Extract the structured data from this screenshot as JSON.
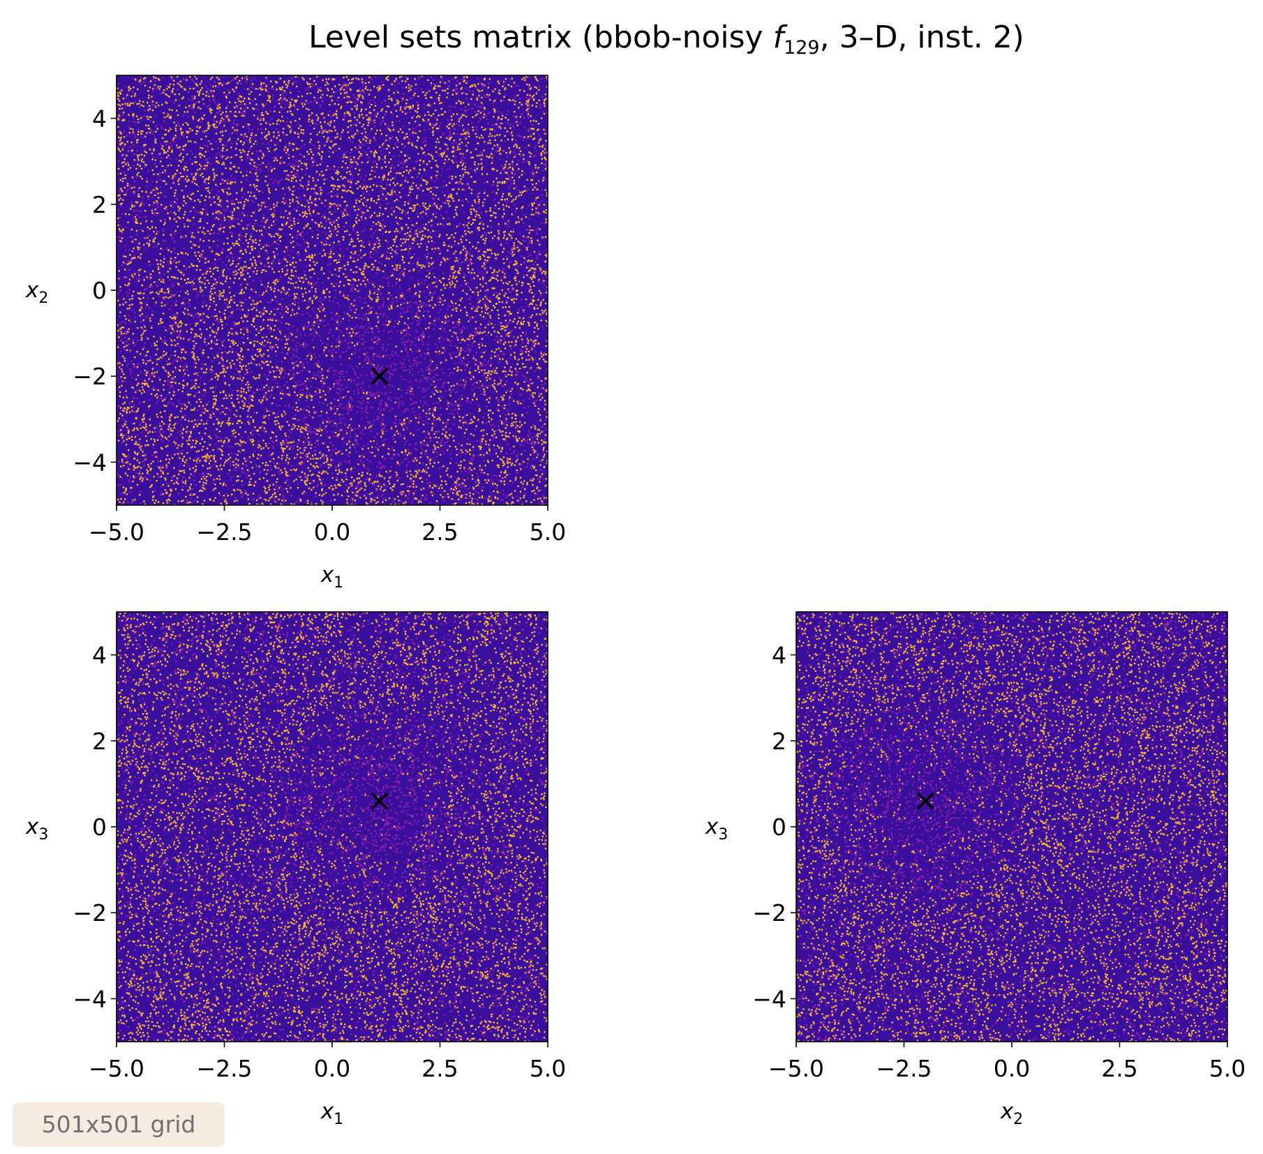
{
  "chart_data": {
    "type": "heatmap",
    "figure_title": {
      "prefix": "Level sets matrix (bbob-noisy ",
      "func_symbol": "f",
      "func_subscript": "129",
      "suffix": ", 3–D, inst. 2)"
    },
    "colors": {
      "low": "#3b0f9e",
      "mid": "#8c1fa6",
      "high": "#fdb62f",
      "marker": "#000000",
      "footer_bg": "#f6ebe0",
      "footer_text": "#707070"
    },
    "panels": [
      {
        "id": "x1-x2",
        "xlabel": {
          "var": "x",
          "sub": "1"
        },
        "ylabel": {
          "var": "x",
          "sub": "2"
        },
        "xlim": [
          -5,
          5
        ],
        "ylim": [
          -5,
          5
        ],
        "xticks": [
          -5.0,
          -2.5,
          0.0,
          2.5,
          5.0
        ],
        "xtick_labels": [
          "−5.0",
          "−2.5",
          "0.0",
          "2.5",
          "5.0"
        ],
        "yticks": [
          -4,
          -2,
          0,
          2,
          4
        ],
        "ytick_labels": [
          "−4",
          "−2",
          "0",
          "2",
          "4"
        ],
        "optimum": {
          "x": 1.1,
          "y": -2.0
        },
        "marker": "x"
      },
      {
        "id": "x1-x3",
        "xlabel": {
          "var": "x",
          "sub": "1"
        },
        "ylabel": {
          "var": "x",
          "sub": "3"
        },
        "xlim": [
          -5,
          5
        ],
        "ylim": [
          -5,
          5
        ],
        "xticks": [
          -5.0,
          -2.5,
          0.0,
          2.5,
          5.0
        ],
        "xtick_labels": [
          "−5.0",
          "−2.5",
          "0.0",
          "2.5",
          "5.0"
        ],
        "yticks": [
          -4,
          -2,
          0,
          2,
          4
        ],
        "ytick_labels": [
          "−4",
          "−2",
          "0",
          "2",
          "4"
        ],
        "optimum": {
          "x": 1.1,
          "y": 0.6
        },
        "marker": "x"
      },
      {
        "id": "x2-x3",
        "xlabel": {
          "var": "x",
          "sub": "2"
        },
        "ylabel": {
          "var": "x",
          "sub": "3"
        },
        "xlim": [
          -5,
          5
        ],
        "ylim": [
          -5,
          5
        ],
        "xticks": [
          -5.0,
          -2.5,
          0.0,
          2.5,
          5.0
        ],
        "xtick_labels": [
          "−5.0",
          "−2.5",
          "0.0",
          "2.5",
          "5.0"
        ],
        "yticks": [
          -4,
          -2,
          0,
          2,
          4
        ],
        "ytick_labels": [
          "−4",
          "−2",
          "0",
          "2",
          "4"
        ],
        "optimum": {
          "x": -2.0,
          "y": 0.6
        },
        "marker": "x"
      }
    ],
    "footer_note": "501x501 grid"
  }
}
